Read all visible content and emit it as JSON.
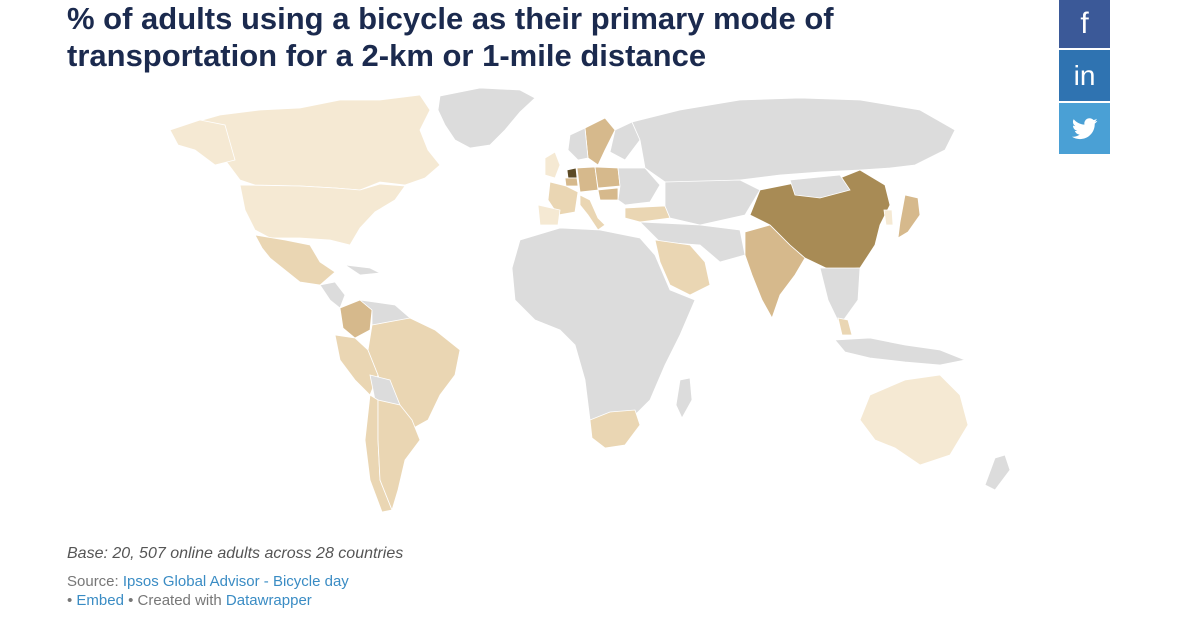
{
  "title": "% of adults using a bicycle as their primary mode of transportation for a 2-km or 1-mile distance",
  "base_note": "Base: 20, 507 online adults across 28 countries",
  "source": {
    "prefix": "Source: ",
    "link_text": "Ipsos Global Advisor - Bicycle day"
  },
  "credit": {
    "bullet1": "• ",
    "embed_text": "Embed",
    "middle": " • Created with ",
    "datawrapper_text": "Datawrapper"
  },
  "social": {
    "facebook_glyph": "f",
    "linkedin_glyph": "in",
    "facebook_color": "#3b5998",
    "linkedin_color": "#2f73b1",
    "twitter_color": "#4aa0d5"
  },
  "colors": {
    "no_data": "#dcdcdc",
    "level_1": "#f5e9d3",
    "level_2": "#ead6b3",
    "level_3": "#d6b98c",
    "level_4": "#a88b55",
    "level_5": "#5c4a26"
  },
  "icons": [
    "facebook-icon",
    "linkedin-icon",
    "twitter-icon"
  ]
}
